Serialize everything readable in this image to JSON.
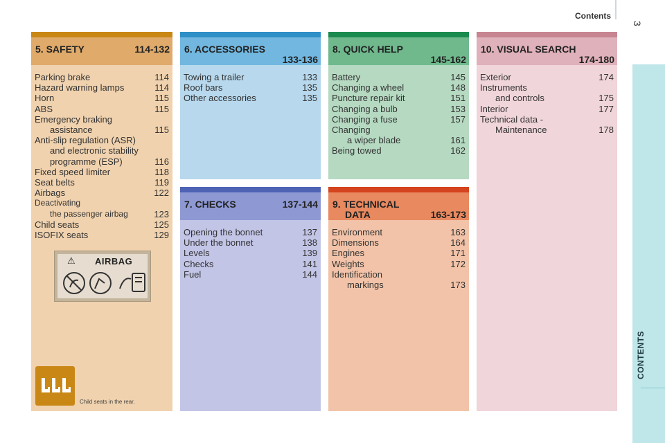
{
  "header": {
    "title": "Contents",
    "page_number": "3"
  },
  "side_tab": {
    "label": "CONTENTS"
  },
  "sections": [
    {
      "id": "safety",
      "title": "5. SAFETY",
      "range": "114-132",
      "colors": {
        "bar": "#c98716",
        "head": "#dfaa6a",
        "body": "#f0d2ae"
      },
      "items": [
        {
          "label": "Parking brake",
          "page": "114"
        },
        {
          "label": "Hazard warning lamps",
          "page": "114"
        },
        {
          "label": "Horn",
          "page": "115"
        },
        {
          "label": "ABS",
          "page": "115"
        },
        {
          "label": "Emergency braking",
          "sub": "assistance",
          "page": "115"
        },
        {
          "label": "Anti-slip regulation (ASR)",
          "sub": "and electronic stability",
          "sub2": "programme (ESP)",
          "page": "116"
        },
        {
          "label": "Fixed speed limiter",
          "page": "118"
        },
        {
          "label": "Seat belts",
          "page": "119"
        },
        {
          "label": "Airbags",
          "page": "122"
        },
        {
          "label": "Deactivating",
          "sub": "the passenger airbag",
          "page": "123",
          "small": true
        },
        {
          "label": "Child seats",
          "page": "125"
        },
        {
          "label": "ISOFIX seats",
          "page": "129"
        }
      ],
      "airbag_label": "AIRBAG",
      "child_caption": "Child seats in the rear."
    },
    {
      "id": "accessories",
      "title": "6. ACCESSORIES",
      "range": "133-136",
      "colors": {
        "bar": "#2f8fc7",
        "head": "#71b7e0",
        "body": "#b7d8ed"
      },
      "items": [
        {
          "label": "Towing a trailer",
          "page": "133"
        },
        {
          "label": "Roof bars",
          "page": "135"
        },
        {
          "label": "Other accessories",
          "page": "135"
        }
      ]
    },
    {
      "id": "checks",
      "title": "7. CHECKS",
      "range": "137-144",
      "colors": {
        "bar": "#4f63b5",
        "head": "#8e99d4",
        "body": "#c2c5e6"
      },
      "items": [
        {
          "label": "Opening the bonnet",
          "page": "137"
        },
        {
          "label": "Under the bonnet",
          "page": "138"
        },
        {
          "label": "Levels",
          "page": "139"
        },
        {
          "label": "Checks",
          "page": "141"
        },
        {
          "label": "Fuel",
          "page": "144"
        }
      ]
    },
    {
      "id": "quickhelp",
      "title": "8. QUICK HELP",
      "range": "145-162",
      "colors": {
        "bar": "#1b8a4f",
        "head": "#6fb98d",
        "body": "#b5d9c1"
      },
      "items": [
        {
          "label": "Battery",
          "page": "145"
        },
        {
          "label": "Changing a wheel",
          "page": "148"
        },
        {
          "label": "Puncture repair kit",
          "page": "151"
        },
        {
          "label": "Changing a bulb",
          "page": "153"
        },
        {
          "label": "Changing a fuse",
          "page": "157"
        },
        {
          "label": "Changing",
          "sub": "a wiper blade",
          "page": "161"
        },
        {
          "label": "Being towed",
          "page": "162"
        }
      ]
    },
    {
      "id": "technical",
      "title": "9. TECHNICAL",
      "title2": "DATA",
      "range": "163-173",
      "colors": {
        "bar": "#d4441e",
        "head": "#e8895f",
        "body": "#f2c3a8"
      },
      "items": [
        {
          "label": "Environment",
          "page": "163"
        },
        {
          "label": "Dimensions",
          "page": "164"
        },
        {
          "label": "Engines",
          "page": "171"
        },
        {
          "label": "Weights",
          "page": "172"
        },
        {
          "label": "Identification",
          "sub": "markings",
          "page": "173"
        }
      ]
    },
    {
      "id": "visual",
      "title": "10. VISUAL SEARCH",
      "range": "174-180",
      "colors": {
        "bar": "#c78591",
        "head": "#dfb1ba",
        "body": "#f0d5da"
      },
      "items": [
        {
          "label": "Exterior",
          "page": "174"
        },
        {
          "label": "Instruments",
          "sub": "and controls",
          "page": "175"
        },
        {
          "label": "Interior",
          "page": "177"
        },
        {
          "label": "Technical data -",
          "sub": "Maintenance",
          "page": "178"
        }
      ]
    }
  ]
}
